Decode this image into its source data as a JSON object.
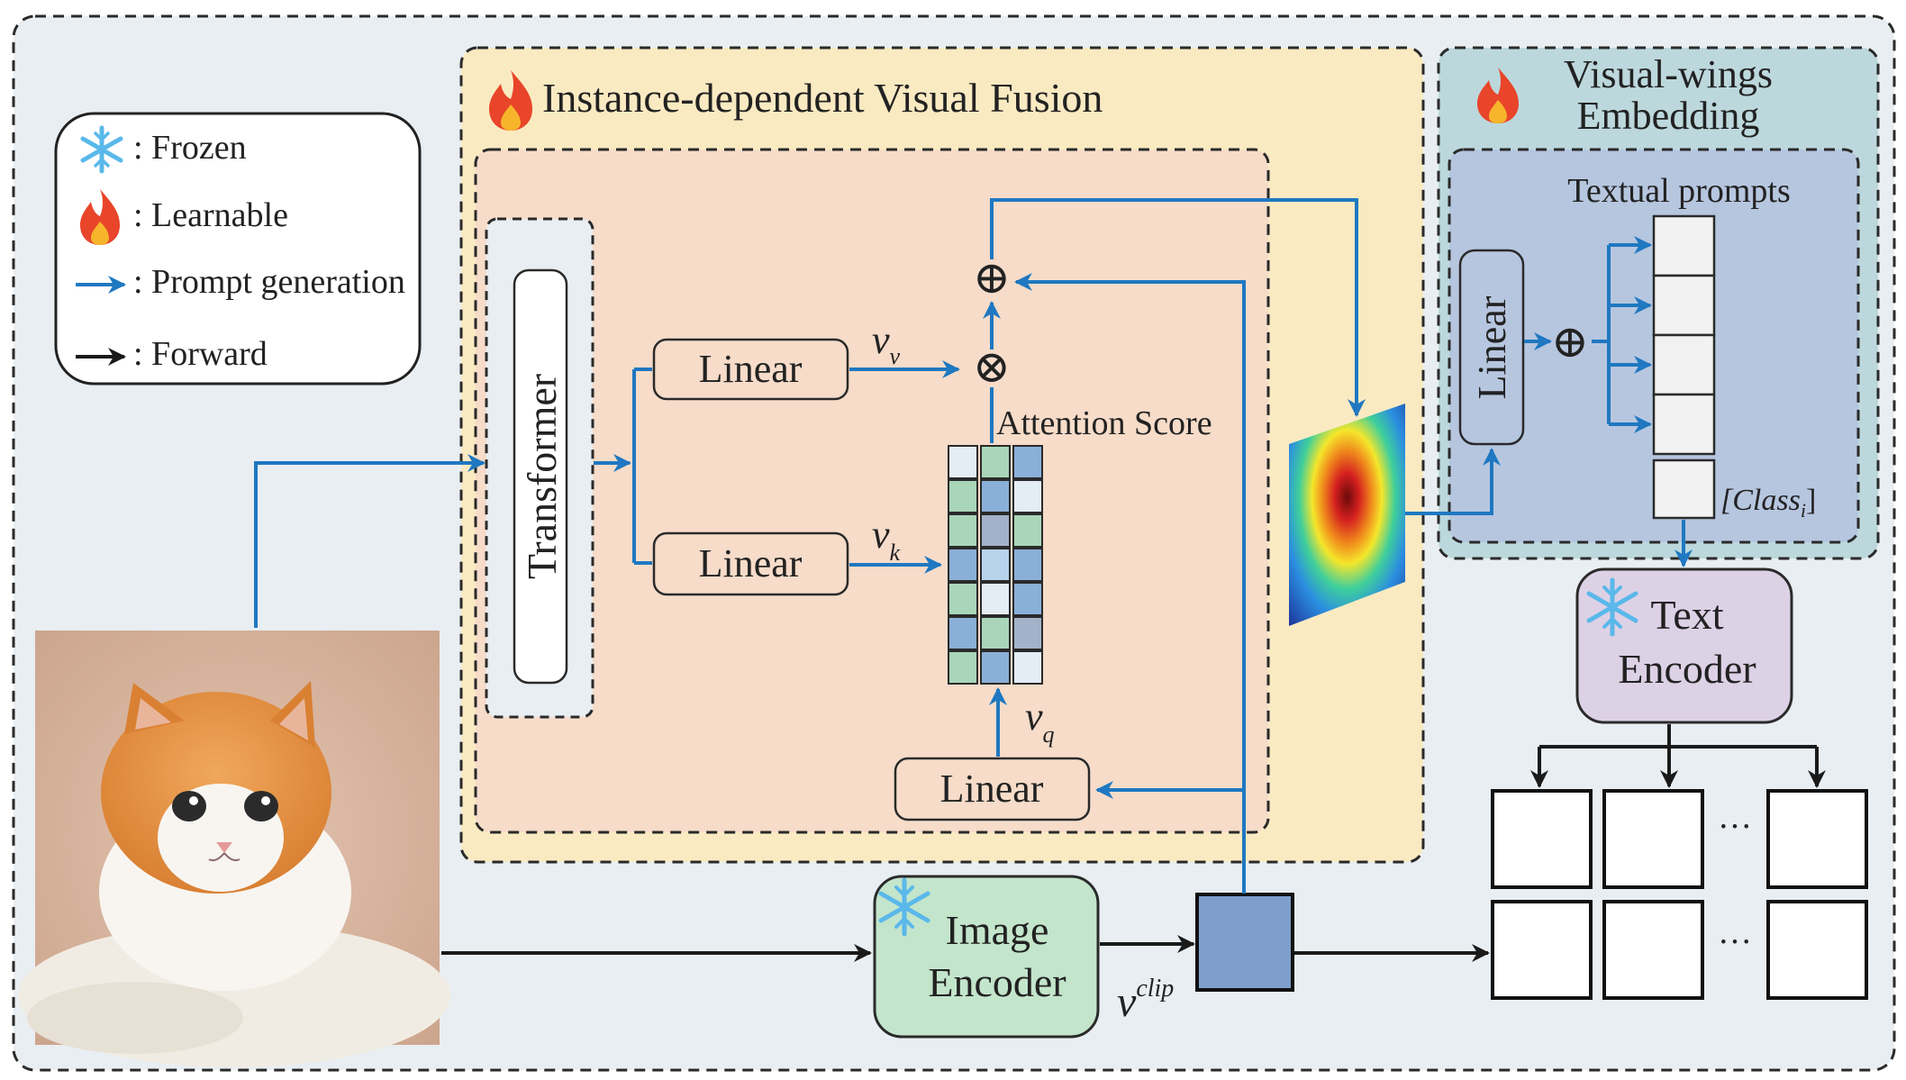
{
  "legend": {
    "frozen": ": Frozen",
    "learnable": ": Learnable",
    "prompt_generation": ": Prompt generation",
    "forward": ": Forward"
  },
  "fusion": {
    "title": "Instance-dependent Visual Fusion",
    "transformer": "Transformer",
    "linear_v": "Linear",
    "linear_k": "Linear",
    "linear_q": "Linear",
    "v_v": "v",
    "v_v_sub": "v",
    "v_k": "v",
    "v_k_sub": "k",
    "v_q": "v",
    "v_q_sub": "q",
    "attention_score": "Attention Score",
    "add_symbol": "⊕",
    "mul_symbol": "⊗"
  },
  "wings": {
    "title_line1": "Visual-wings",
    "title_line2": "Embedding",
    "textual_prompts": "Textual prompts",
    "linear": "Linear",
    "add_symbol": "⊕",
    "class_label": "[Class",
    "class_sub": "i",
    "class_close": "]"
  },
  "text_encoder": {
    "line1": "Text",
    "line2": "Encoder"
  },
  "image_encoder": {
    "line1": "Image",
    "line2": "Encoder"
  },
  "v_clip": "v",
  "v_clip_sup": "clip",
  "ellipsis": "···",
  "colors": {
    "prompt_arrow": "#1f78c1",
    "forward_arrow": "#1a1a1a",
    "outer_bg": "#e9eef2",
    "fusion_bg": "#faeac2",
    "inner_fusion_bg": "#f6dcc9",
    "wings_bg": "#bcd8dd",
    "wings_inner_bg": "#b6c6df",
    "text_encoder_bg": "#ddd1e6",
    "image_encoder_bg": "#c3e5cb",
    "clip_feature": "#7e9fcc"
  }
}
